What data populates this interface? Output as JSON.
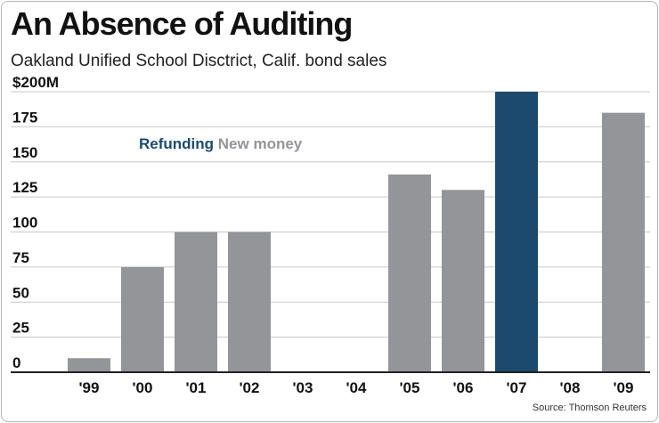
{
  "header": {
    "title": "An Absence of Auditing",
    "subtitle": "Oakland Unified School Disctrict, Calif. bond sales"
  },
  "footer": {
    "source": "Source: Thomson Reuters"
  },
  "colors": {
    "refunding": "#1c4a6e",
    "new_money": "#939598",
    "grid": "#c8c8c8",
    "axis": "#222222"
  },
  "chart_data": {
    "type": "bar",
    "title": "An Absence of Auditing",
    "subtitle": "Oakland Unified School Disctrict, Calif. bond sales",
    "xlabel": "",
    "ylabel": "",
    "ylim": [
      0,
      200
    ],
    "y_ticks": [
      0,
      25,
      50,
      75,
      100,
      125,
      150,
      175,
      200
    ],
    "y_tick_labels": [
      "0",
      "25",
      "50",
      "75",
      "100",
      "125",
      "150",
      "175",
      "$200M"
    ],
    "categories": [
      "'99",
      "'00",
      "'01",
      "'02",
      "'03",
      "'04",
      "'05",
      "'06",
      "'07",
      "'08",
      "'09"
    ],
    "legend": [
      {
        "name": "Refunding",
        "color": "#1c4a6e"
      },
      {
        "name": "New money",
        "color": "#939598"
      }
    ],
    "legend_position": "top-left",
    "grid": true,
    "series": [
      {
        "name": "Refunding",
        "values": [
          0,
          0,
          0,
          0,
          0,
          0,
          0,
          0,
          200,
          0,
          0
        ]
      },
      {
        "name": "New money",
        "values": [
          10,
          75,
          100,
          100,
          0,
          0,
          141,
          130,
          0,
          0,
          185
        ]
      }
    ]
  }
}
